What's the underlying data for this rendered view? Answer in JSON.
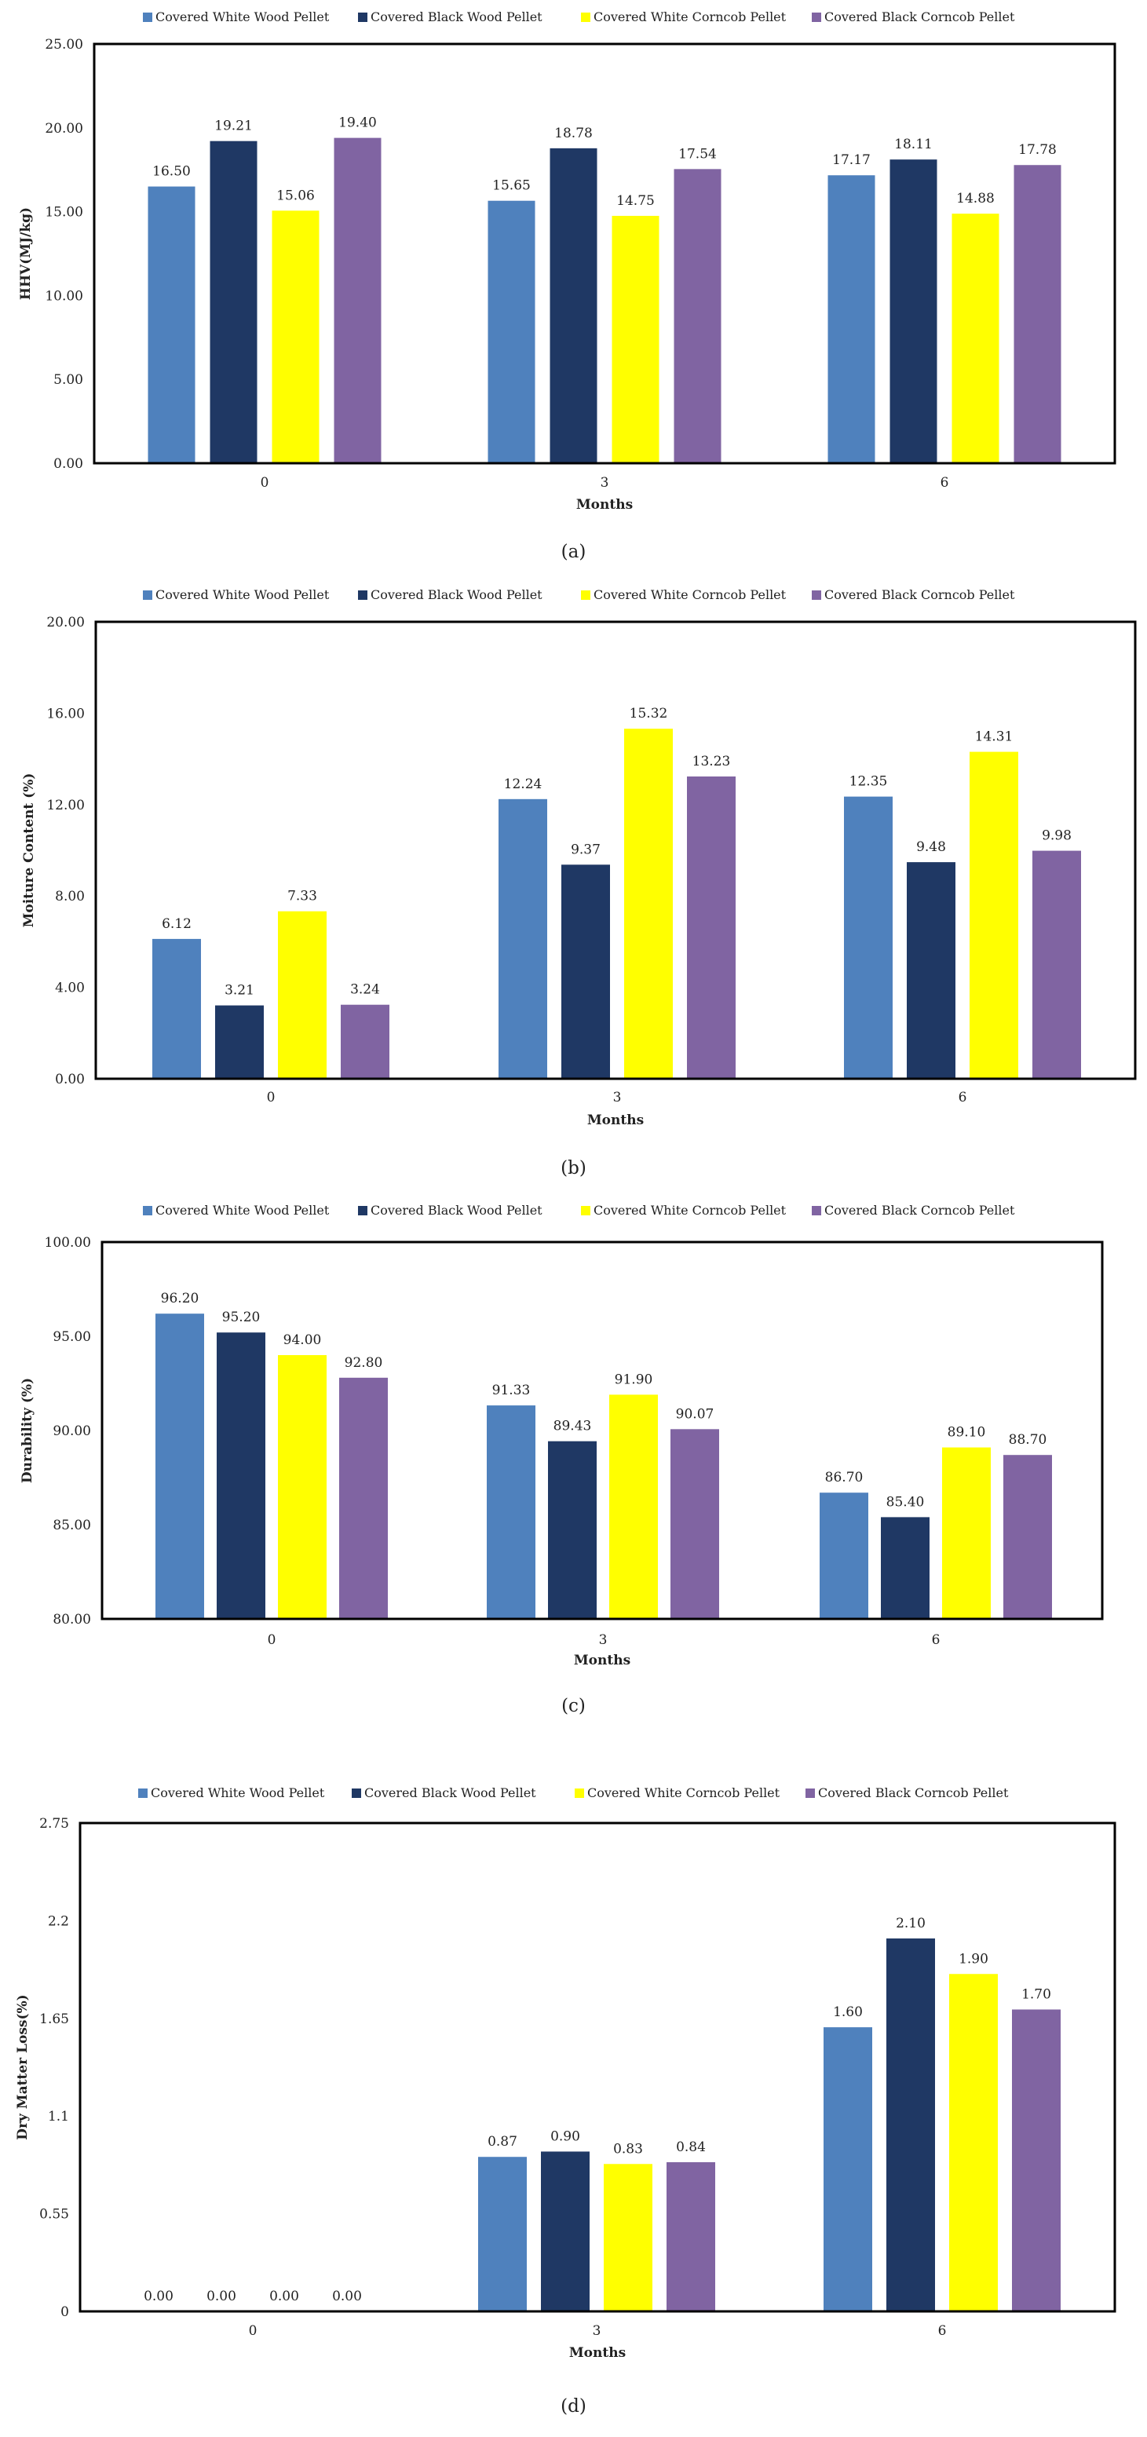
{
  "legend_labels": [
    "Covered White Wood Pellet",
    "Covered Black Wood Pellet",
    "Covered White Corncob Pellet",
    "Covered Black Corncob Pellet"
  ],
  "colors": [
    "#4f81bd",
    "#1f3864",
    "#ffff00",
    "#8064a2"
  ],
  "chart_data": [
    {
      "type": "bar",
      "caption": "(a)",
      "xlabel": "Months",
      "ylabel": "HHV(MJ/kg)",
      "categories": [
        "0",
        "3",
        "6"
      ],
      "ylim": [
        0,
        25
      ],
      "yticks": [
        "0.00",
        "5.00",
        "10.00",
        "15.00",
        "20.00",
        "25.00"
      ],
      "legend": "top",
      "series": [
        {
          "name": "Covered White Wood Pellet",
          "values": [
            16.5,
            15.65,
            17.17
          ],
          "labels": [
            "16.50",
            "15.65",
            "17.17"
          ]
        },
        {
          "name": "Covered Black Wood Pellet",
          "values": [
            19.21,
            18.78,
            18.11
          ],
          "labels": [
            "19.21",
            "18.78",
            "18.11"
          ]
        },
        {
          "name": "Covered White Corncob Pellet",
          "values": [
            15.06,
            14.75,
            14.88
          ],
          "labels": [
            "15.06",
            "14.75",
            "14.88"
          ]
        },
        {
          "name": "Covered Black Corncob Pellet",
          "values": [
            19.4,
            17.54,
            17.78
          ],
          "labels": [
            "19.40",
            "17.54",
            "17.78"
          ]
        }
      ]
    },
    {
      "type": "bar",
      "caption": "(b)",
      "xlabel": "Months",
      "ylabel": "Moiture Content (%)",
      "categories": [
        "0",
        "3",
        "6"
      ],
      "ylim": [
        0,
        20
      ],
      "yticks": [
        "0.00",
        "4.00",
        "8.00",
        "12.00",
        "16.00",
        "20.00"
      ],
      "legend": "top",
      "series": [
        {
          "name": "Covered White Wood Pellet",
          "values": [
            6.12,
            12.24,
            12.35
          ],
          "labels": [
            "6.12",
            "12.24",
            "12.35"
          ]
        },
        {
          "name": "Covered Black Wood Pellet",
          "values": [
            3.21,
            9.37,
            9.48
          ],
          "labels": [
            "3.21",
            "9.37",
            "9.48"
          ]
        },
        {
          "name": "Covered White Corncob Pellet",
          "values": [
            7.33,
            15.32,
            14.31
          ],
          "labels": [
            "7.33",
            "15.32",
            "14.31"
          ]
        },
        {
          "name": "Covered Black Corncob Pellet",
          "values": [
            3.24,
            13.23,
            9.98
          ],
          "labels": [
            "3.24",
            "13.23",
            "9.98"
          ]
        }
      ]
    },
    {
      "type": "bar",
      "caption": "(c)",
      "xlabel": "Months",
      "ylabel": "Durability (%)",
      "categories": [
        "0",
        "3",
        "6"
      ],
      "ylim": [
        80,
        100
      ],
      "yticks": [
        "80.00",
        "85.00",
        "90.00",
        "95.00",
        "100.00"
      ],
      "legend": "top",
      "series": [
        {
          "name": "Covered White Wood Pellet",
          "values": [
            96.2,
            91.33,
            86.7
          ],
          "labels": [
            "96.20",
            "91.33",
            "86.70"
          ]
        },
        {
          "name": "Covered Black Wood Pellet",
          "values": [
            95.2,
            89.43,
            85.4
          ],
          "labels": [
            "95.20",
            "89.43",
            "85.40"
          ]
        },
        {
          "name": "Covered White Corncob Pellet",
          "values": [
            94.0,
            91.9,
            89.1
          ],
          "labels": [
            "94.00",
            "91.90",
            "89.10"
          ]
        },
        {
          "name": "Covered Black Corncob Pellet",
          "values": [
            92.8,
            90.07,
            88.7
          ],
          "labels": [
            "92.80",
            "90.07",
            "88.70"
          ]
        }
      ]
    },
    {
      "type": "bar",
      "caption": "(d)",
      "xlabel": "Months",
      "ylabel": "Dry Matter Loss(%)",
      "categories": [
        "0",
        "3",
        "6"
      ],
      "ylim": [
        0,
        2.75
      ],
      "yticks": [
        "0",
        "0.55",
        "1.1",
        "1.65",
        "2.2",
        "2.75"
      ],
      "legend": "top",
      "series": [
        {
          "name": "Covered White Wood Pellet",
          "values": [
            0.0,
            0.87,
            1.6
          ],
          "labels": [
            "0.00",
            "0.87",
            "1.60"
          ]
        },
        {
          "name": "Covered Black Wood Pellet",
          "values": [
            0.0,
            0.9,
            2.1
          ],
          "labels": [
            "0.00",
            "0.90",
            "2.10"
          ]
        },
        {
          "name": "Covered White Corncob Pellet",
          "values": [
            0.0,
            0.83,
            1.9
          ],
          "labels": [
            "0.00",
            "0.83",
            "1.90"
          ]
        },
        {
          "name": "Covered Black Corncob Pellet",
          "values": [
            0.0,
            0.84,
            1.7
          ],
          "labels": [
            "0.00",
            "0.84",
            "1.70"
          ]
        }
      ]
    }
  ]
}
